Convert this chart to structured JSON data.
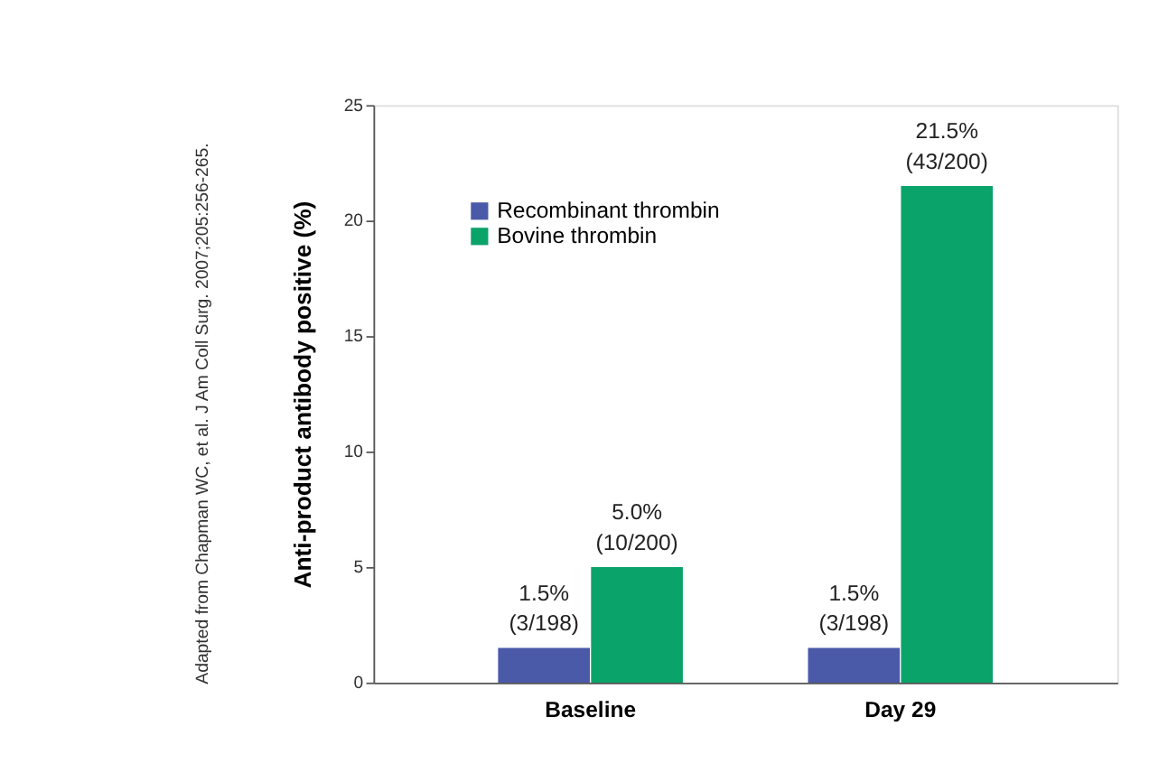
{
  "chart_data": {
    "type": "bar",
    "ylabel": "Anti-product antibody positive (%)",
    "categories": [
      "Baseline",
      "Day 29"
    ],
    "series": [
      {
        "name": "Recombinant thrombin",
        "color": "#4a5aa8",
        "values": [
          1.5,
          1.5
        ],
        "value_labels": [
          "1.5%\n(3/198)",
          "1.5%\n(3/198)"
        ]
      },
      {
        "name": "Bovine thrombin",
        "color": "#0aa36a",
        "values": [
          5.0,
          21.5
        ],
        "value_labels": [
          "5.0%\n(10/200)",
          "21.5%\n(43/200)"
        ]
      }
    ],
    "ylim": [
      0,
      25
    ],
    "yticks": [
      0,
      5,
      10,
      15,
      20,
      25
    ],
    "grid": false,
    "legend": "top left",
    "annotations": [
      "Adapted from Chapman WC, et al. J Am Coll Surg. 2007;205:256-265."
    ]
  }
}
